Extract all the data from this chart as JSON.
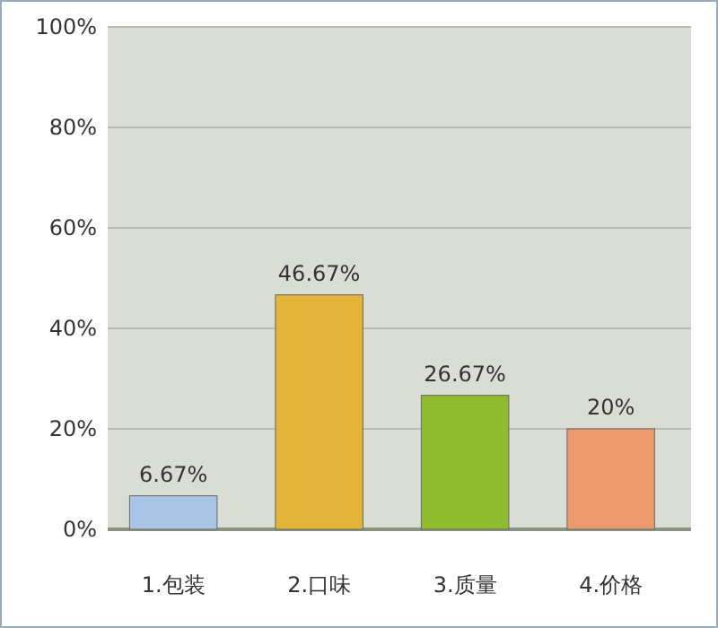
{
  "chart_data": {
    "type": "bar",
    "categories": [
      "1.包装",
      "2.口味",
      "3.质量",
      "4.价格"
    ],
    "values": [
      6.67,
      46.67,
      26.67,
      20
    ],
    "colors": [
      "#a9c5e6",
      "#e3b437",
      "#8fbc2e",
      "#ec9a6c"
    ],
    "value_labels": [
      "6.67%",
      "46.67%",
      "26.67%",
      "20%"
    ],
    "ylim": [
      0,
      100
    ],
    "yticks": [
      {
        "value": 0,
        "label": "0%"
      },
      {
        "value": 20,
        "label": "20%"
      },
      {
        "value": 40,
        "label": "40%"
      },
      {
        "value": 60,
        "label": "60%"
      },
      {
        "value": 80,
        "label": "80%"
      },
      {
        "value": 100,
        "label": "100%"
      }
    ],
    "grid": "y"
  }
}
